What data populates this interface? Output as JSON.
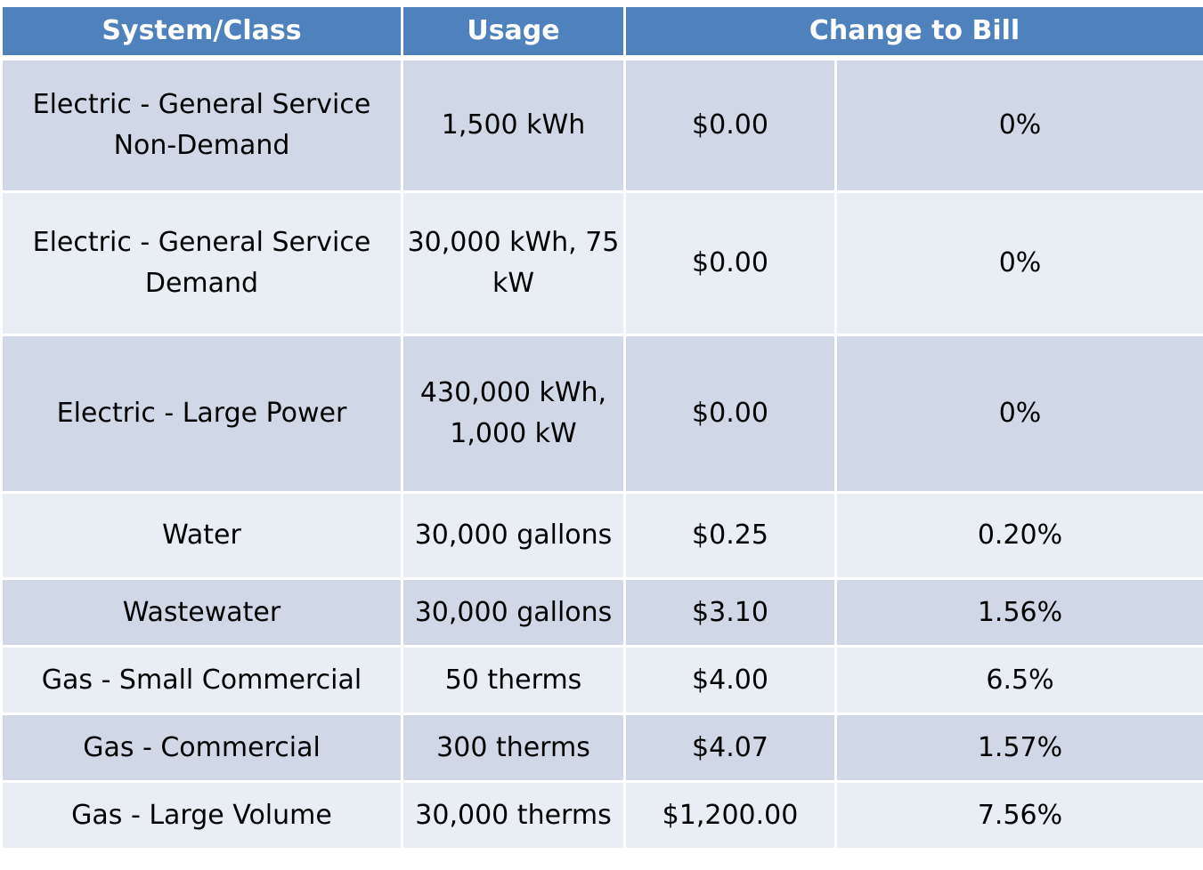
{
  "table": {
    "headers": {
      "system_class": "System/Class",
      "usage": "Usage",
      "change_to_bill": "Change to Bill"
    },
    "rows": [
      {
        "system_class": "Electric - General Service Non-Demand",
        "usage": "1,500 kWh",
        "dollars": "$0.00",
        "percent": "0%"
      },
      {
        "system_class": "Electric - General Service Demand",
        "usage": "30,000 kWh, 75 kW",
        "dollars": "$0.00",
        "percent": "0%"
      },
      {
        "system_class": "Electric - Large Power",
        "usage": "430,000 kWh, 1,000 kW",
        "dollars": "$0.00",
        "percent": "0%"
      },
      {
        "system_class": "Water",
        "usage": "30,000 gallons",
        "dollars": "$0.25",
        "percent": "0.20%"
      },
      {
        "system_class": "Wastewater",
        "usage": "30,000 gallons",
        "dollars": "$3.10",
        "percent": "1.56%"
      },
      {
        "system_class": "Gas - Small Commercial",
        "usage": "50 therms",
        "dollars": "$4.00",
        "percent": "6.5%"
      },
      {
        "system_class": "Gas - Commercial",
        "usage": "300 therms",
        "dollars": "$4.07",
        "percent": "1.57%"
      },
      {
        "system_class": "Gas - Large Volume",
        "usage": "30,000 therms",
        "dollars": "$1,200.00",
        "percent": "7.56%"
      }
    ],
    "colors": {
      "header": "#4f81bd",
      "row_dark": "#d0d8e8",
      "row_light": "#e9edf4"
    }
  }
}
